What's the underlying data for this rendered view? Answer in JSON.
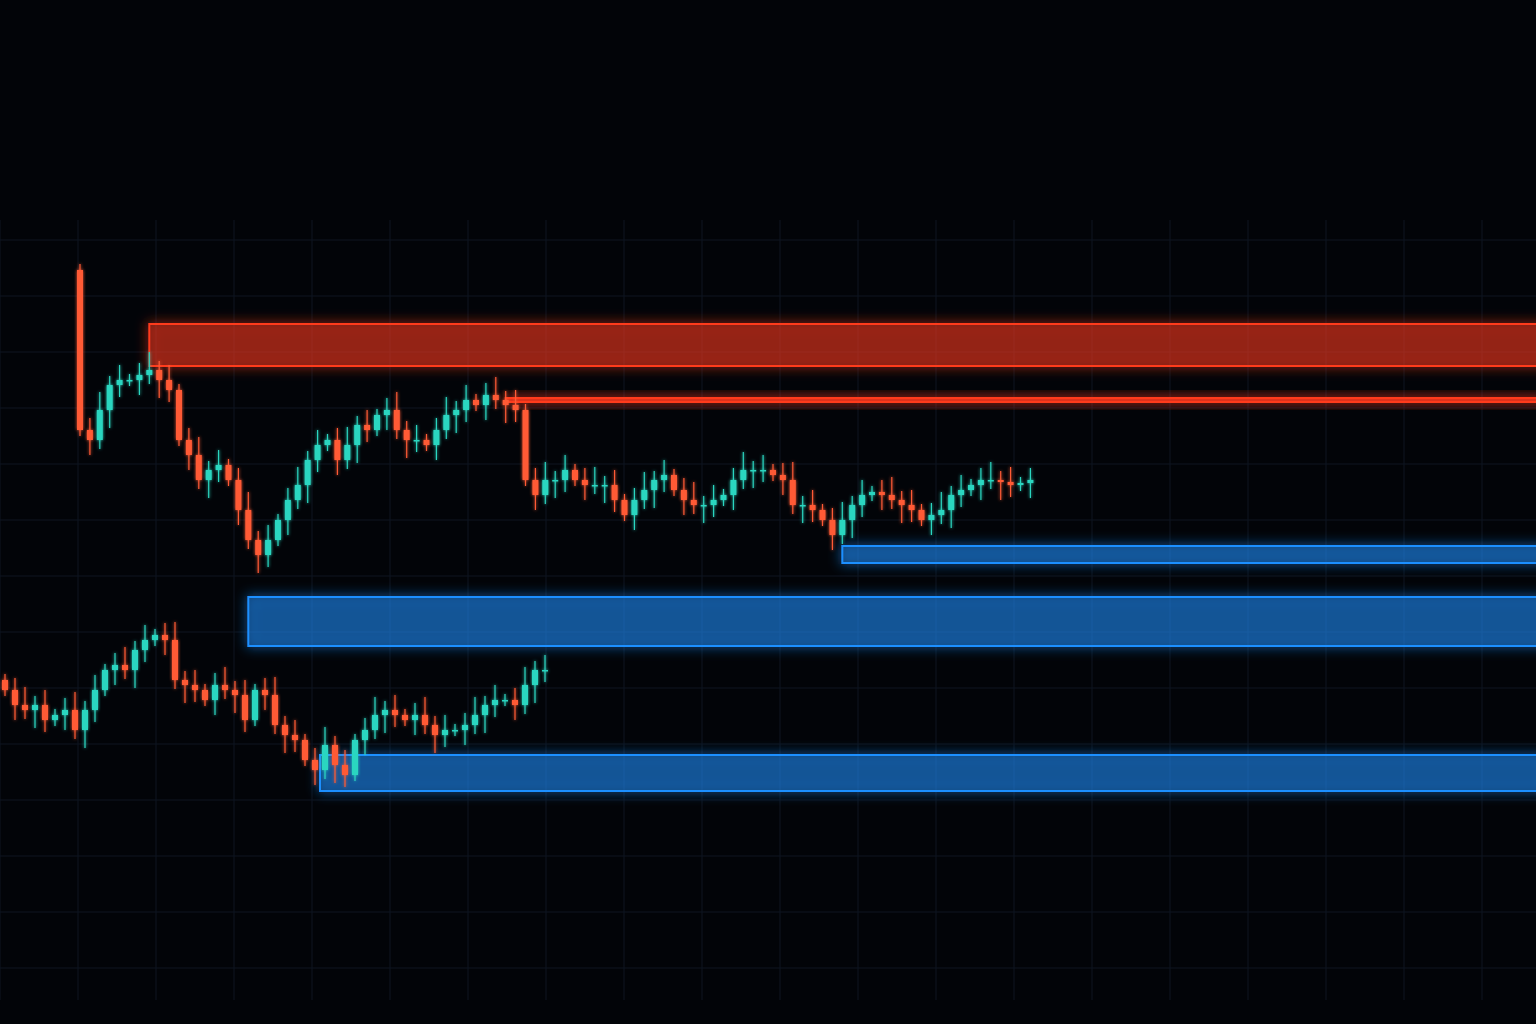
{
  "chart_data": {
    "type": "candlestick",
    "title": "",
    "xlabel": "",
    "ylabel": "",
    "grid": true,
    "colors": {
      "up": "#2ad6c0",
      "down": "#ff5a36",
      "resistance": "#ff3a1e",
      "support": "#1e8fff",
      "background": "#020408"
    },
    "series": [
      {
        "first_open": 73,
        "closes": [
          57,
          56,
          59,
          61.5,
          62,
          62,
          62.5,
          63,
          62,
          61,
          56,
          54.5,
          52,
          53,
          53.5,
          52,
          49,
          46,
          44.5,
          46,
          48,
          50,
          51.5,
          54,
          55.5,
          56,
          54,
          55.5,
          57.5,
          57,
          58.5,
          59,
          57,
          56,
          56,
          55.5,
          57,
          58.5,
          59,
          60,
          59.5,
          60.5,
          60,
          59.5,
          59,
          52,
          50.5,
          52,
          52,
          53,
          52,
          51.5,
          51.5,
          51.5,
          50,
          48.5,
          50,
          51,
          52,
          52.5,
          51,
          50,
          49.5,
          49.5,
          50,
          50.5,
          52,
          53,
          53,
          53,
          52.5,
          52,
          49.5,
          49.5,
          49,
          48,
          46.5,
          48,
          49.5,
          50.5,
          50.8,
          50.5,
          50,
          49.5,
          49,
          48,
          48.5,
          49,
          50.5,
          51,
          51.5,
          52,
          52,
          51.8,
          51.5,
          51.7,
          52
        ]
      },
      {
        "first_open": 32,
        "closes": [
          31,
          29.5,
          29,
          29.5,
          28,
          28.5,
          29,
          27,
          29,
          31,
          33,
          33.5,
          33,
          35,
          36,
          36.5,
          36,
          32,
          31.5,
          31,
          30,
          31.5,
          31,
          30.5,
          28,
          31,
          30.5,
          27.5,
          26.5,
          26,
          24,
          23,
          25.5,
          23.5,
          22.5,
          26,
          27,
          28.5,
          29,
          28.5,
          28,
          28.5,
          27.5,
          26.5,
          27,
          27,
          27.5,
          28.5,
          29.5,
          30,
          30,
          29.5,
          31.5,
          33,
          33
        ]
      }
    ],
    "zones": [
      {
        "kind": "resistance",
        "series": 0,
        "start_index": 7,
        "low": 63.4,
        "high": 67.6
      },
      {
        "kind": "resistance",
        "series": 0,
        "start_index": 43,
        "low": 59.8,
        "high": 60.2
      },
      {
        "kind": "support",
        "series": 0,
        "start_index": 77,
        "low": 43.7,
        "high": 45.4
      },
      {
        "kind": "support",
        "series": 0,
        "start_index": 17,
        "low": 35.4,
        "high": 40.3
      },
      {
        "kind": "support",
        "series": 1,
        "start_index": 31.5,
        "low": 20.9,
        "high": 24.5
      }
    ]
  }
}
